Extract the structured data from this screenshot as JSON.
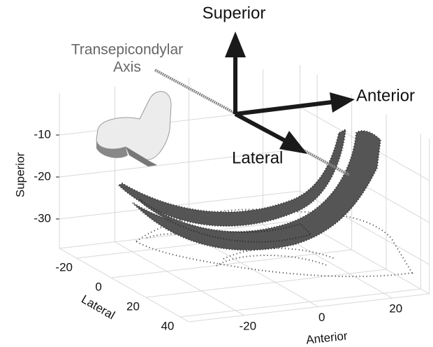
{
  "chart_data": {
    "type": "surface3d",
    "annotations": {
      "superior": "Superior",
      "anterior": "Anterior",
      "lateral": "Lateral",
      "axis": [
        "Transepicondylar",
        "Axis"
      ]
    },
    "xlabel": "Lateral",
    "ylabel": "Anterior",
    "zlabel": "Superior",
    "xlim": [
      -30,
      45
    ],
    "ylim": [
      -35,
      30
    ],
    "zlim": [
      -37,
      0
    ],
    "xticks": [
      -20,
      0,
      20,
      40
    ],
    "yticks": [
      -20,
      0,
      20
    ],
    "zticks": [
      -10,
      -20,
      -30
    ],
    "grid": true
  }
}
